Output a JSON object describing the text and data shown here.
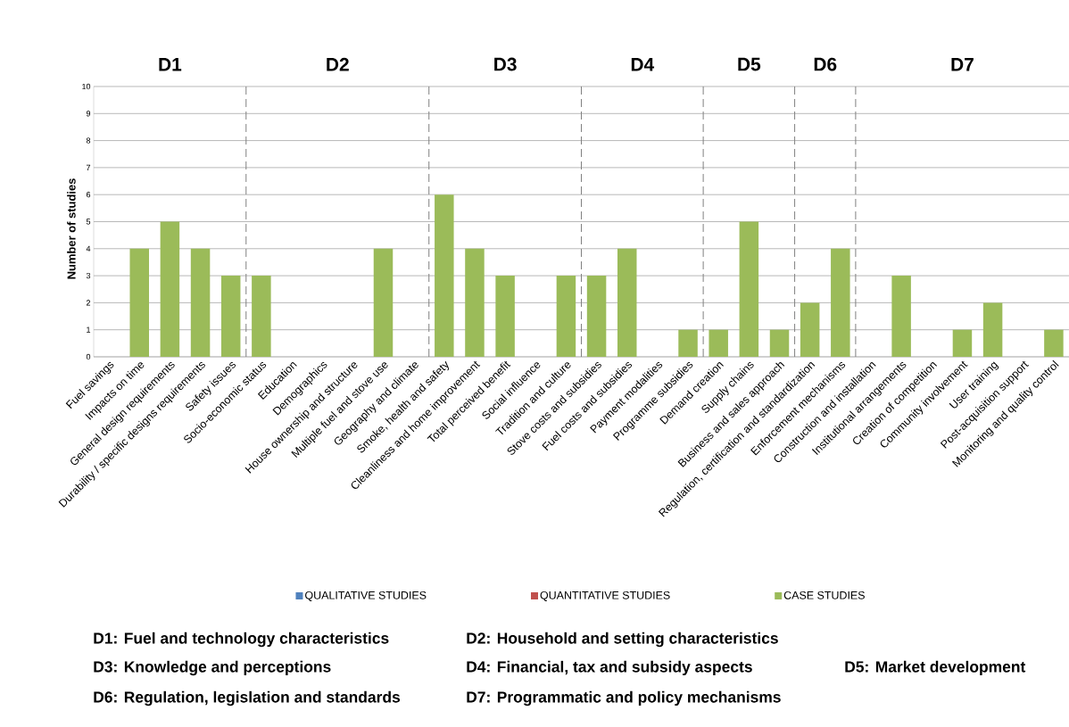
{
  "chart_data": {
    "type": "bar",
    "ylabel": "Number of studies",
    "categories": [
      "Fuel savings",
      "Impacts on time",
      "General design requirements",
      "Durability / specific designs requirements",
      "Safety issues",
      "Socio-economic status",
      "Education",
      "Demographics",
      "House ownership and structure",
      "Multiple fuel and stove use",
      "Geography and climate",
      "Smoke, health and safety",
      "Cleanliness and home improvement",
      "Total perceived benefit",
      "Social influence",
      "Tradition and culture",
      "Stove  costs and subsidies",
      "Fuel costs and subsidies",
      "Payment modalities",
      "Programme subsidies",
      "Demand creation",
      "Supply chains",
      "Business and sales approach",
      "Regulation, certification and standardization",
      "Enforcement mechanisms",
      "Construction and installation",
      "Institutional arrangements",
      "Creation of competition",
      "Community involvement",
      "User training",
      "Post-acquisition support",
      "Monitoring and quality control"
    ],
    "series": [
      {
        "name": "QUALITATIVE STUDIES",
        "color": "#4f81bd",
        "values": [
          0,
          0,
          0,
          0,
          0,
          0,
          0,
          0,
          0,
          0,
          0,
          0,
          0,
          0,
          0,
          0,
          0,
          0,
          0,
          0,
          0,
          0,
          0,
          0,
          0,
          0,
          0,
          0,
          0,
          0,
          0,
          0
        ]
      },
      {
        "name": "QUANTITATIVE STUDIES",
        "color": "#c0504d",
        "values": [
          0,
          0,
          0,
          0,
          0,
          0,
          0,
          0,
          0,
          0,
          0,
          0,
          0,
          0,
          0,
          0,
          0,
          0,
          0,
          0,
          0,
          0,
          0,
          0,
          0,
          0,
          0,
          0,
          0,
          0,
          0,
          0
        ]
      },
      {
        "name": "CASE STUDIES",
        "color": "#9bbb59",
        "values": [
          0,
          4,
          5,
          4,
          3,
          3,
          0,
          0,
          0,
          4,
          0,
          6,
          4,
          3,
          0,
          3,
          3,
          4,
          0,
          1,
          1,
          5,
          1,
          2,
          4,
          0,
          3,
          0,
          1,
          2,
          0,
          1
        ]
      }
    ],
    "ylim": [
      0,
      10
    ],
    "yticks": [
      0,
      1,
      2,
      3,
      4,
      5,
      6,
      7,
      8,
      9,
      10
    ],
    "grid": "y",
    "legend": "bottom",
    "annotations": [
      "D1",
      "D2",
      "D3",
      "D4",
      "D5",
      "D6",
      "D7",
      "D1: Fuel and technology characteristics",
      "D2: Household and setting characteristics",
      "D3: Knowledge and perceptions",
      "D4: Financial, tax and subsidy aspects",
      "D5: Market development",
      "D6: Regulation, legislation and standards",
      "D7: Programmatic and policy mechanisms"
    ]
  }
}
